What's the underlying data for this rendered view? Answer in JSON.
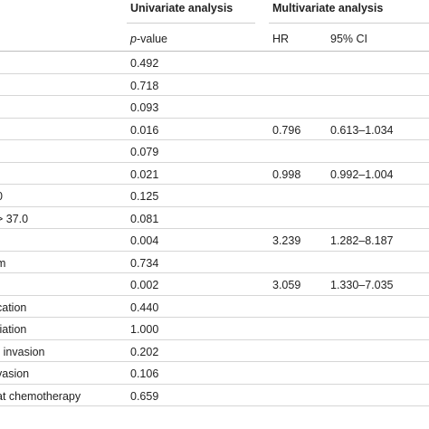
{
  "header": {
    "univariate": "Univariate analysis",
    "multivariate": "Multivariate analysis"
  },
  "subheader": {
    "p_italic": "p",
    "p_rest": "-value",
    "hr": "HR",
    "ci": "95% CI"
  },
  "rows": [
    {
      "variable": "",
      "p": "0.492",
      "hr": "",
      "ci": ""
    },
    {
      "variable": "",
      "p": "0.718",
      "hr": "",
      "ci": ""
    },
    {
      "variable": "",
      "p": "0.093",
      "hr": "",
      "ci": ""
    },
    {
      "variable": "",
      "p": "0.016",
      "hr": "0.796",
      "ci": "0.613–1.034"
    },
    {
      "variable": "",
      "p": "0.079",
      "hr": "",
      "ci": ""
    },
    {
      "variable": "",
      "p": "0.021",
      "hr": "0.998",
      "ci": "0.992–1.004"
    },
    {
      "variable": "0",
      "p": "0.125",
      "hr": "",
      "ci": ""
    },
    {
      "variable": "> 37.0",
      "p": "0.081",
      "hr": "",
      "ci": ""
    },
    {
      "variable": "",
      "p": "0.004",
      "hr": "3.239",
      "ci": "1.282–8.187"
    },
    {
      "variable": "m",
      "p": "0.734",
      "hr": "",
      "ci": ""
    },
    {
      "variable": "",
      "p": "0.002",
      "hr": "3.059",
      "ci": "1.330–7.035"
    },
    {
      "variable": "cation",
      "p": "0.440",
      "hr": "",
      "ci": ""
    },
    {
      "variable": "tiation",
      "p": "1.000",
      "hr": "",
      "ci": ""
    },
    {
      "variable": "r invasion",
      "p": "0.202",
      "hr": "",
      "ci": ""
    },
    {
      "variable": "vasion",
      "p": "0.106",
      "hr": "",
      "ci": ""
    },
    {
      "variable": "at chemotherapy",
      "p": "0.659",
      "hr": "",
      "ci": ""
    }
  ]
}
